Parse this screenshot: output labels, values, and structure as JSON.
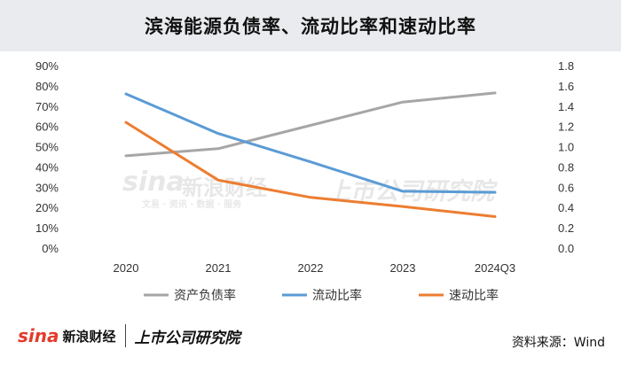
{
  "chart_data": {
    "type": "line",
    "title": "滨海能源负债率、流动比率和速动比率",
    "categories": [
      "2020",
      "2021",
      "2022",
      "2023",
      "2024Q3"
    ],
    "y_left": {
      "ticks": [
        "0%",
        "10%",
        "20%",
        "30%",
        "40%",
        "50%",
        "60%",
        "70%",
        "80%",
        "90%"
      ],
      "ylim": [
        0,
        0.9
      ]
    },
    "y_right": {
      "ticks": [
        "0.0",
        "0.2",
        "0.4",
        "0.6",
        "0.8",
        "1.0",
        "1.2",
        "1.4",
        "1.6",
        "1.8"
      ],
      "ylim": [
        0,
        1.8
      ]
    },
    "grid": false,
    "legend_position": "bottom",
    "series": [
      {
        "name": "资产负债率",
        "axis": "left",
        "color": "#a6a6a6",
        "values": [
          0.455,
          0.49,
          0.605,
          0.72,
          0.765
        ]
      },
      {
        "name": "流动比率",
        "axis": "right",
        "color": "#5b9bd5",
        "values": [
          1.52,
          1.13,
          0.85,
          0.56,
          0.55
        ]
      },
      {
        "name": "速动比率",
        "axis": "right",
        "color": "#ed7d31",
        "values": [
          1.24,
          0.67,
          0.5,
          0.41,
          0.31
        ]
      }
    ]
  },
  "watermark": {
    "sina": "sina",
    "sina_cn": "新浪财经",
    "sina_sub": "文易 · 资讯 · 数据 · 服务",
    "sss": "上市公司研究院"
  },
  "footer": {
    "sina": "sina",
    "sina_cn": "新浪财经",
    "sss": "上市公司研究院",
    "source": "资料来源：Wind"
  }
}
